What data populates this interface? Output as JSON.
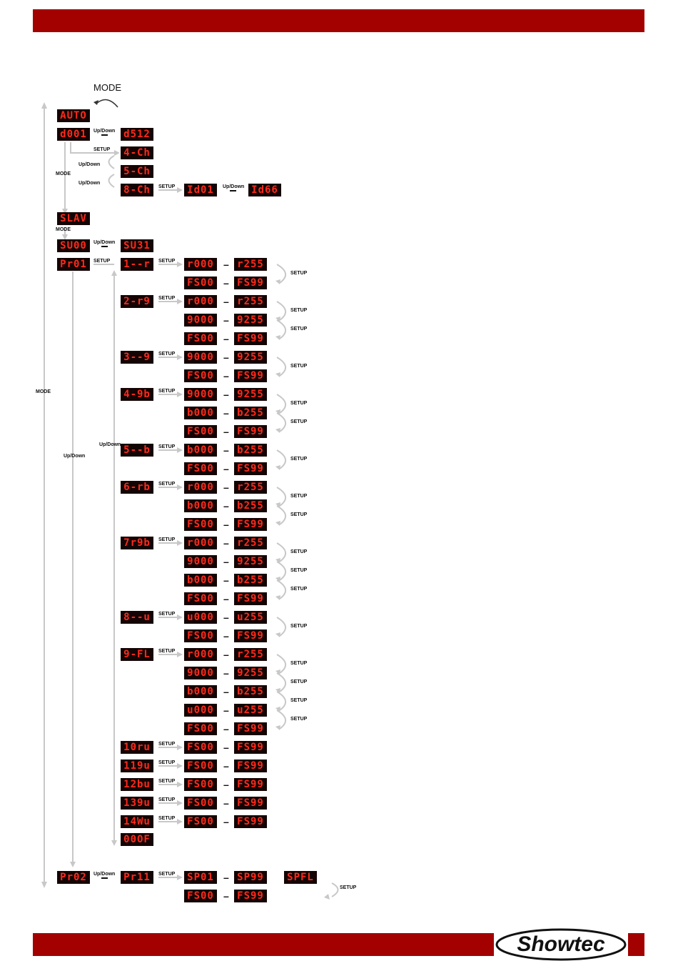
{
  "colors": {
    "accent": "#a30000",
    "lcd_bg": "#140404",
    "lcd_text": "#ff2a1a"
  },
  "top_label": "MODE",
  "left_mode_label": "MODE",
  "labels": {
    "updown": "Up/Down",
    "setup": "SETUP",
    "mode": "MODE"
  },
  "displays": {
    "auto": "AUTO",
    "d001": "d001",
    "d512": "d512",
    "ch4": "4-Ch",
    "ch5": "5-Ch",
    "ch8": "8-Ch",
    "id01": "Id01",
    "id66": "Id66",
    "slav": "SLAV",
    "su00": "SU00",
    "su31": "SU31",
    "pr01": "Pr01",
    "pr02": "Pr02",
    "pr11": "Pr11",
    "sp01": "SP01",
    "sp99": "SP99",
    "spfl": "SPFL",
    "fs00": "FS00",
    "fs99": "FS99"
  },
  "programs": [
    {
      "name": "1--r",
      "rows": [
        [
          "r000",
          "r255"
        ],
        [
          "FS00",
          "FS99"
        ]
      ]
    },
    {
      "name": "2-r9",
      "rows": [
        [
          "r000",
          "r255"
        ],
        [
          "9000",
          "9255"
        ],
        [
          "FS00",
          "FS99"
        ]
      ]
    },
    {
      "name": "3--9",
      "rows": [
        [
          "9000",
          "9255"
        ],
        [
          "FS00",
          "FS99"
        ]
      ]
    },
    {
      "name": "4-9b",
      "rows": [
        [
          "9000",
          "9255"
        ],
        [
          "b000",
          "b255"
        ],
        [
          "FS00",
          "FS99"
        ]
      ]
    },
    {
      "name": "5--b",
      "rows": [
        [
          "b000",
          "b255"
        ],
        [
          "FS00",
          "FS99"
        ]
      ]
    },
    {
      "name": "6-rb",
      "rows": [
        [
          "r000",
          "r255"
        ],
        [
          "b000",
          "b255"
        ],
        [
          "FS00",
          "FS99"
        ]
      ]
    },
    {
      "name": "7r9b",
      "rows": [
        [
          "r000",
          "r255"
        ],
        [
          "9000",
          "9255"
        ],
        [
          "b000",
          "b255"
        ],
        [
          "FS00",
          "FS99"
        ]
      ]
    },
    {
      "name": "8--u",
      "rows": [
        [
          "u000",
          "u255"
        ],
        [
          "FS00",
          "FS99"
        ]
      ]
    },
    {
      "name": "9-FL",
      "rows": [
        [
          "r000",
          "r255"
        ],
        [
          "9000",
          "9255"
        ],
        [
          "b000",
          "b255"
        ],
        [
          "u000",
          "u255"
        ],
        [
          "FS00",
          "FS99"
        ]
      ]
    },
    {
      "name": "10ru",
      "rows": [
        [
          "FS00",
          "FS99"
        ]
      ]
    },
    {
      "name": "119u",
      "rows": [
        [
          "FS00",
          "FS99"
        ]
      ]
    },
    {
      "name": "12bu",
      "rows": [
        [
          "FS00",
          "FS99"
        ]
      ]
    },
    {
      "name": "139u",
      "rows": [
        [
          "FS00",
          "FS99"
        ]
      ]
    },
    {
      "name": "14Wu",
      "rows": [
        [
          "FS00",
          "FS99"
        ]
      ]
    }
  ],
  "last_program": "00OF",
  "brand": "Showtec"
}
